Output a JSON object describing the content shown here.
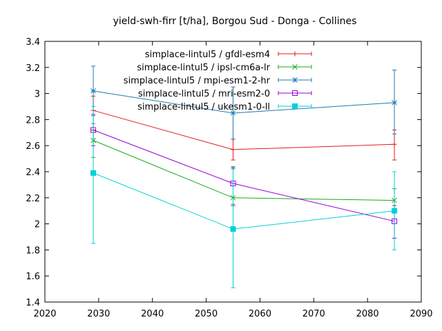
{
  "chart_data": {
    "type": "line",
    "title": "yield-swh-firr [t/ha], Borgou Sud - Donga - Collines",
    "xlabel": "",
    "ylabel": "",
    "xlim": [
      2020,
      2090
    ],
    "ylim": [
      1.4,
      3.4
    ],
    "xticks": [
      "2020",
      "2030",
      "2040",
      "2050",
      "2060",
      "2070",
      "2080",
      "2090"
    ],
    "yticks": [
      "1.4",
      "1.6",
      "1.8",
      "2",
      "2.2",
      "2.4",
      "2.6",
      "2.8",
      "3",
      "3.2",
      "3.4"
    ],
    "x": [
      2029,
      2055,
      2085
    ],
    "grid": false,
    "legend_position": "top-right",
    "series": [
      {
        "name": "simplace-lintul5 / gfdl-esm4",
        "color": "#e41a1c",
        "marker": "plus",
        "values": [
          2.87,
          2.57,
          2.61
        ],
        "err_low": [
          2.72,
          2.49,
          2.49
        ],
        "err_high": [
          2.98,
          2.65,
          2.72
        ]
      },
      {
        "name": "simplace-lintul5 / ipsl-cm6a-lr",
        "color": "#1aa81a",
        "marker": "x",
        "values": [
          2.64,
          2.2,
          2.18
        ],
        "err_low": [
          2.51,
          2.15,
          2.09
        ],
        "err_high": [
          2.77,
          2.44,
          2.27
        ]
      },
      {
        "name": "simplace-lintul5 / mpi-esm1-2-hr",
        "color": "#1f78b4",
        "marker": "star",
        "values": [
          3.02,
          2.85,
          2.93
        ],
        "err_low": [
          2.83,
          2.65,
          2.69
        ],
        "err_high": [
          3.21,
          3.05,
          3.18
        ]
      },
      {
        "name": "simplace-lintul5 / mri-esm2-0",
        "color": "#9400d3",
        "marker": "open-square",
        "values": [
          2.72,
          2.31,
          2.02
        ],
        "err_low": [
          2.6,
          2.14,
          1.89
        ],
        "err_high": [
          2.84,
          2.43,
          2.14
        ]
      },
      {
        "name": "simplace-lintul5 / ukesm1-0-ll",
        "color": "#00d0d8",
        "marker": "filled-square",
        "values": [
          2.39,
          1.96,
          2.1
        ],
        "err_low": [
          1.85,
          1.51,
          1.8
        ],
        "err_high": [
          2.9,
          2.42,
          2.4
        ]
      }
    ]
  }
}
